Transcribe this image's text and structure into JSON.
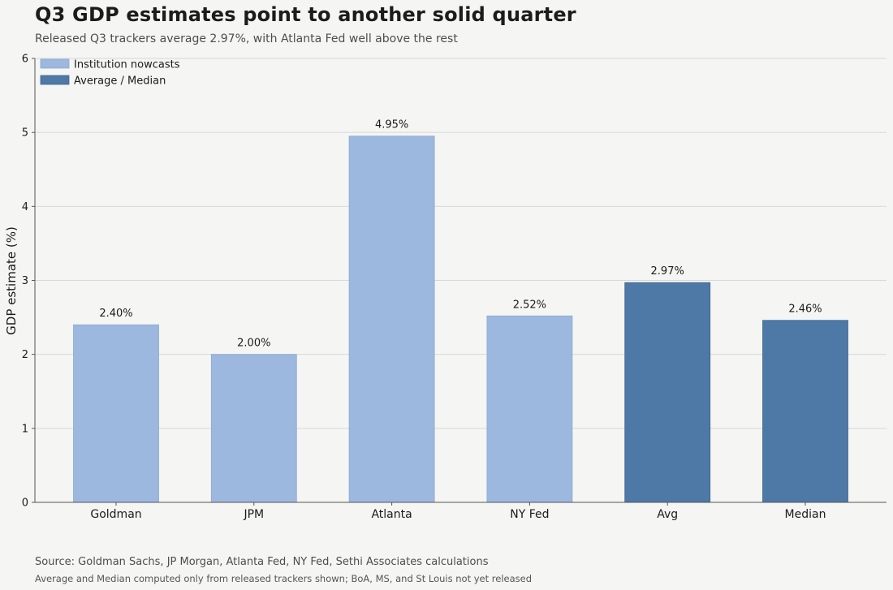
{
  "title": "Q3 GDP estimates point to another solid quarter",
  "subtitle": "Released Q3 trackers average 2.97%, with Atlanta Fed well above the rest",
  "footer": {
    "source": "Source: Goldman Sachs, JP Morgan, Atlanta Fed, NY Fed, Sethi Associates calculations",
    "note": "Average and Median computed only from released trackers shown; BoA, MS, and St Louis not yet released"
  },
  "colors": {
    "institution": "#9db8de",
    "summary": "#4e78a6",
    "grid": "#d8d8d8",
    "axis": "#555555"
  },
  "chart_data": {
    "type": "bar",
    "title": "Q3 GDP estimates point to another solid quarter",
    "subtitle": "Released Q3 trackers average 2.97%, with Atlanta Fed well above the rest",
    "xlabel": "",
    "ylabel": "GDP estimate (%)",
    "ylim": [
      0,
      6
    ],
    "yticks": [
      0,
      1,
      2,
      3,
      4,
      5,
      6
    ],
    "grid": true,
    "legend_position": "top-left",
    "categories": [
      "Goldman",
      "JPM",
      "Atlanta",
      "NY Fed",
      "Avg",
      "Median"
    ],
    "values": [
      2.4,
      2.0,
      4.95,
      2.52,
      2.97,
      2.46
    ],
    "labels": [
      "2.40%",
      "2.00%",
      "4.95%",
      "2.52%",
      "2.97%",
      "2.46%"
    ],
    "groups": [
      "institution",
      "institution",
      "institution",
      "institution",
      "summary",
      "summary"
    ],
    "legend": [
      {
        "key": "institution",
        "label": "Institution nowcasts"
      },
      {
        "key": "summary",
        "label": "Average / Median"
      }
    ]
  }
}
